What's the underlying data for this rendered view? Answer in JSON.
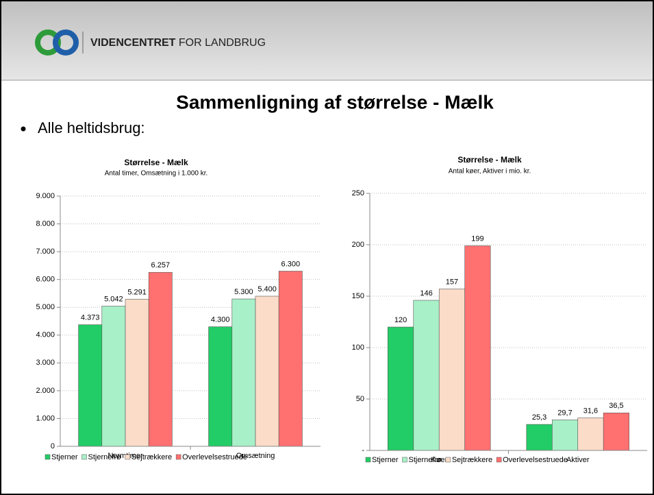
{
  "brand_bold": "VIDENCENTRET",
  "brand_rest": "FOR LANDBRUG",
  "slide_title": "Sammenligning af størrelse - Mælk",
  "bullet": "Alle heltidsbrug:",
  "chart_data": [
    {
      "type": "bar",
      "title": "Størrelse - Mælk",
      "subtitle": "Antal timer, Omsætning i 1.000 kr.",
      "categories": [
        "Normtimer",
        "Omsætning"
      ],
      "series": [
        {
          "name": "Stjerner",
          "color": "#22cc66",
          "values": [
            4373,
            4300
          ],
          "value_labels": [
            "4.373",
            "4.300"
          ]
        },
        {
          "name": "Stjernefrø",
          "color": "#a8f0c8",
          "values": [
            5042,
            5300
          ],
          "value_labels": [
            "5.042",
            "5.300"
          ]
        },
        {
          "name": "Sejtrækkere",
          "color": "#fadcc8",
          "values": [
            5291,
            5400
          ],
          "value_labels": [
            "5.291",
            "5.400"
          ]
        },
        {
          "name": "Overlevelsestruede",
          "color": "#ff7070",
          "values": [
            6257,
            6300
          ],
          "value_labels": [
            "6.257",
            "6.300"
          ]
        }
      ],
      "ylim": [
        0,
        9000
      ],
      "yticks": [
        0,
        {
          "value": 1000,
          "label": "1.000"
        },
        {
          "value": 2000,
          "label": "2.000"
        },
        {
          "value": 3000,
          "label": "3.000"
        },
        {
          "value": 4000,
          "label": "4.000"
        },
        {
          "value": 5000,
          "label": "5.000"
        },
        {
          "value": 6000,
          "label": "6.000"
        },
        {
          "value": 7000,
          "label": "7.000"
        },
        {
          "value": 8000,
          "label": "8.000"
        },
        {
          "value": 9000,
          "label": "9.000"
        }
      ],
      "grid": true,
      "legend": "bottom"
    },
    {
      "type": "bar",
      "title": "Størrelse - Mælk",
      "subtitle": "Antal køer, Aktiver i mio. kr.",
      "categories": [
        "Køer",
        "Aktiver"
      ],
      "series": [
        {
          "name": "Stjerner",
          "color": "#22cc66",
          "values": [
            120,
            25.3
          ],
          "value_labels": [
            "120",
            "25,3"
          ]
        },
        {
          "name": "Stjernefrø",
          "color": "#a8f0c8",
          "values": [
            146,
            29.7
          ],
          "value_labels": [
            "146",
            "29,7"
          ]
        },
        {
          "name": "Sejtrækkere",
          "color": "#fadcc8",
          "values": [
            157,
            31.6
          ],
          "value_labels": [
            "157",
            "31,6"
          ]
        },
        {
          "name": "Overlevelsestruede",
          "color": "#ff7070",
          "values": [
            199,
            36.5
          ],
          "value_labels": [
            "199",
            "36,5"
          ]
        }
      ],
      "ylim": [
        0,
        250
      ],
      "yticks": [
        {
          "value": 0,
          "label": "-"
        },
        50,
        100,
        150,
        200,
        250
      ],
      "grid": true,
      "legend": "bottom"
    }
  ]
}
